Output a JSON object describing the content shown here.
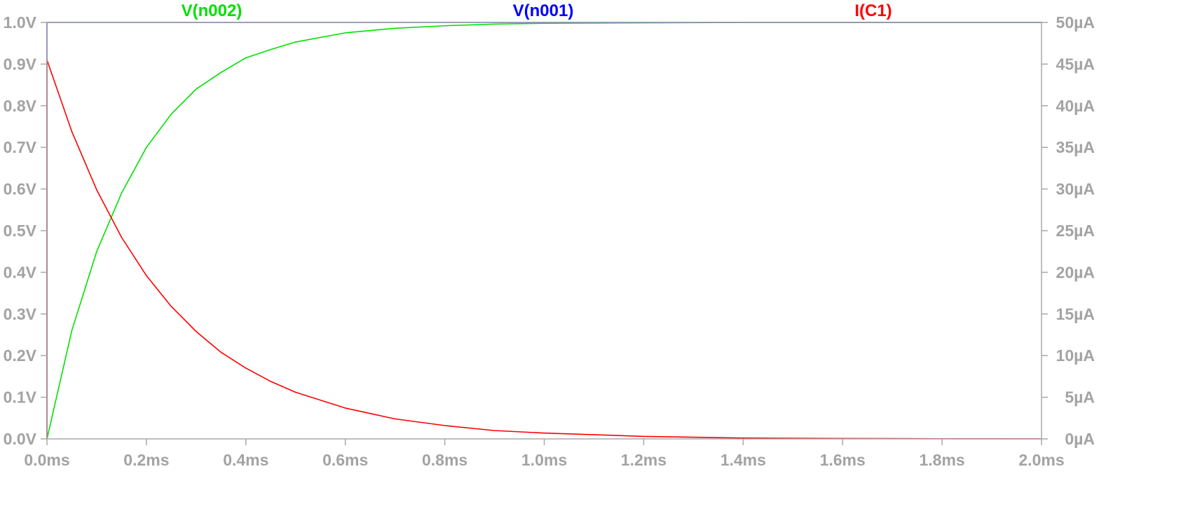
{
  "chart_data": {
    "type": "line",
    "title": "",
    "xlabel": "",
    "ylabel": "",
    "y2label": "",
    "grid": false,
    "legend_placement": "top",
    "x_range": [
      0,
      2.0
    ],
    "y_range": [
      0,
      1.0
    ],
    "y2_range": [
      0,
      50
    ],
    "x_ticks": [
      0.0,
      0.2,
      0.4,
      0.6,
      0.8,
      1.0,
      1.2,
      1.4,
      1.6,
      1.8,
      2.0
    ],
    "x_tick_labels": [
      "0.0ms",
      "0.2ms",
      "0.4ms",
      "0.6ms",
      "0.8ms",
      "1.0ms",
      "1.2ms",
      "1.4ms",
      "1.6ms",
      "1.8ms",
      "2.0ms"
    ],
    "y_ticks": [
      0.0,
      0.1,
      0.2,
      0.3,
      0.4,
      0.5,
      0.6,
      0.7,
      0.8,
      0.9,
      1.0
    ],
    "y_tick_labels": [
      "0.0V",
      "0.1V",
      "0.2V",
      "0.3V",
      "0.4V",
      "0.5V",
      "0.6V",
      "0.7V",
      "0.8V",
      "0.9V",
      "1.0V"
    ],
    "y2_ticks": [
      0,
      5,
      10,
      15,
      20,
      25,
      30,
      35,
      40,
      45,
      50
    ],
    "y2_tick_labels": [
      "0µA",
      "5µA",
      "10µA",
      "15µA",
      "20µA",
      "25µA",
      "30µA",
      "35µA",
      "40µA",
      "45µA",
      "50µA"
    ],
    "series": [
      {
        "name": "V(n002)",
        "color": "#00e000",
        "axis": "left",
        "x": [
          0.0,
          0.05,
          0.1,
          0.15,
          0.2,
          0.25,
          0.3,
          0.35,
          0.4,
          0.45,
          0.5,
          0.6,
          0.7,
          0.8,
          0.9,
          1.0,
          1.2,
          1.4,
          1.6,
          1.8,
          2.0
        ],
        "y": [
          0.0,
          0.26,
          0.45,
          0.59,
          0.7,
          0.78,
          0.84,
          0.88,
          0.915,
          0.935,
          0.953,
          0.975,
          0.986,
          0.992,
          0.996,
          0.998,
          0.999,
          1.0,
          1.0,
          1.0,
          1.0
        ]
      },
      {
        "name": "V(n001)",
        "color": "#0000ff",
        "axis": "left",
        "x": [
          0.0,
          0.0,
          2.0
        ],
        "y": [
          0.0,
          1.0,
          1.0
        ]
      },
      {
        "name": "I(C1)",
        "color": "#ff0000",
        "axis": "right",
        "x": [
          0.0,
          0.0,
          0.05,
          0.1,
          0.15,
          0.2,
          0.25,
          0.3,
          0.35,
          0.4,
          0.45,
          0.5,
          0.6,
          0.7,
          0.8,
          0.9,
          1.0,
          1.2,
          1.4,
          1.6,
          1.8,
          2.0
        ],
        "y": [
          0.0,
          45.5,
          36.9,
          29.9,
          24.2,
          19.6,
          15.9,
          12.9,
          10.4,
          8.5,
          6.9,
          5.6,
          3.7,
          2.4,
          1.6,
          1.0,
          0.7,
          0.3,
          0.1,
          0.05,
          0.02,
          0.01
        ]
      }
    ]
  }
}
